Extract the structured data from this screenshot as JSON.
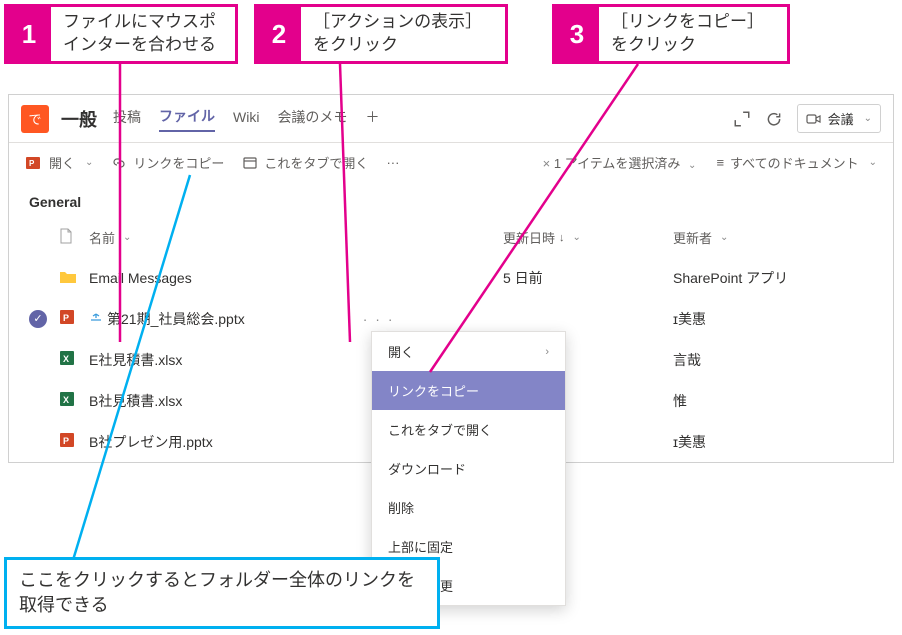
{
  "callouts": {
    "c1": {
      "num": "1",
      "text": "ファイルにマウスポインターを合わせる"
    },
    "c2": {
      "num": "2",
      "text": "［アクションの表示］をクリック"
    },
    "c3": {
      "num": "3",
      "text": "［リンクをコピー］をクリック"
    },
    "bottom": "ここをクリックするとフォルダー全体のリンクを取得できる"
  },
  "header": {
    "team_initial": "で",
    "channel": "一般",
    "tabs": {
      "posts": "投稿",
      "files": "ファイル",
      "wiki": "Wiki",
      "notes": "会議のメモ"
    },
    "meeting_label": "会議"
  },
  "toolbar": {
    "open": "開く",
    "copylink": "リンクをコピー",
    "opentab": "これをタブで開く",
    "more": "···",
    "selected": "1 アイテムを選択済み",
    "alldocs": "すべてのドキュメント"
  },
  "folder": {
    "name": "General"
  },
  "columns": {
    "name": "名前",
    "date": "更新日時",
    "author": "更新者"
  },
  "files": [
    {
      "icon": "folder",
      "name": "Email Messages",
      "date": "5 日前",
      "author": "SharePoint アプリ",
      "selected": false
    },
    {
      "icon": "pptx",
      "name": "第21期_社員総会.pptx",
      "date": "",
      "author": "ɪ美惠",
      "selected": true
    },
    {
      "icon": "xlsx",
      "name": "E社見積書.xlsx",
      "date": "",
      "author": "言哉",
      "selected": false
    },
    {
      "icon": "xlsx",
      "name": "B社見積書.xlsx",
      "date": "",
      "author": "惟",
      "selected": false
    },
    {
      "icon": "pptx",
      "name": "B社プレゼン用.pptx",
      "date": "",
      "author": "ɪ美惠",
      "selected": false
    }
  ],
  "context_menu": {
    "items": [
      {
        "label": "開く",
        "submenu": true,
        "highlight": false
      },
      {
        "label": "リンクをコピー",
        "submenu": false,
        "highlight": true
      },
      {
        "label": "これをタブで開く",
        "submenu": false,
        "highlight": false
      },
      {
        "label": "ダウンロード",
        "submenu": false,
        "highlight": false
      },
      {
        "label": "削除",
        "submenu": false,
        "highlight": false
      },
      {
        "label": "上部に固定",
        "submenu": false,
        "highlight": false
      },
      {
        "label": "名前の変更",
        "submenu": false,
        "highlight": false
      }
    ]
  },
  "colors": {
    "callout_border": "#e3008c",
    "bottom_border": "#00b0f0",
    "accent": "#6264a7",
    "ctx_highlight": "#8385c7",
    "ppt": "#d24726",
    "xls": "#217346",
    "folder": "#ffc83d"
  }
}
